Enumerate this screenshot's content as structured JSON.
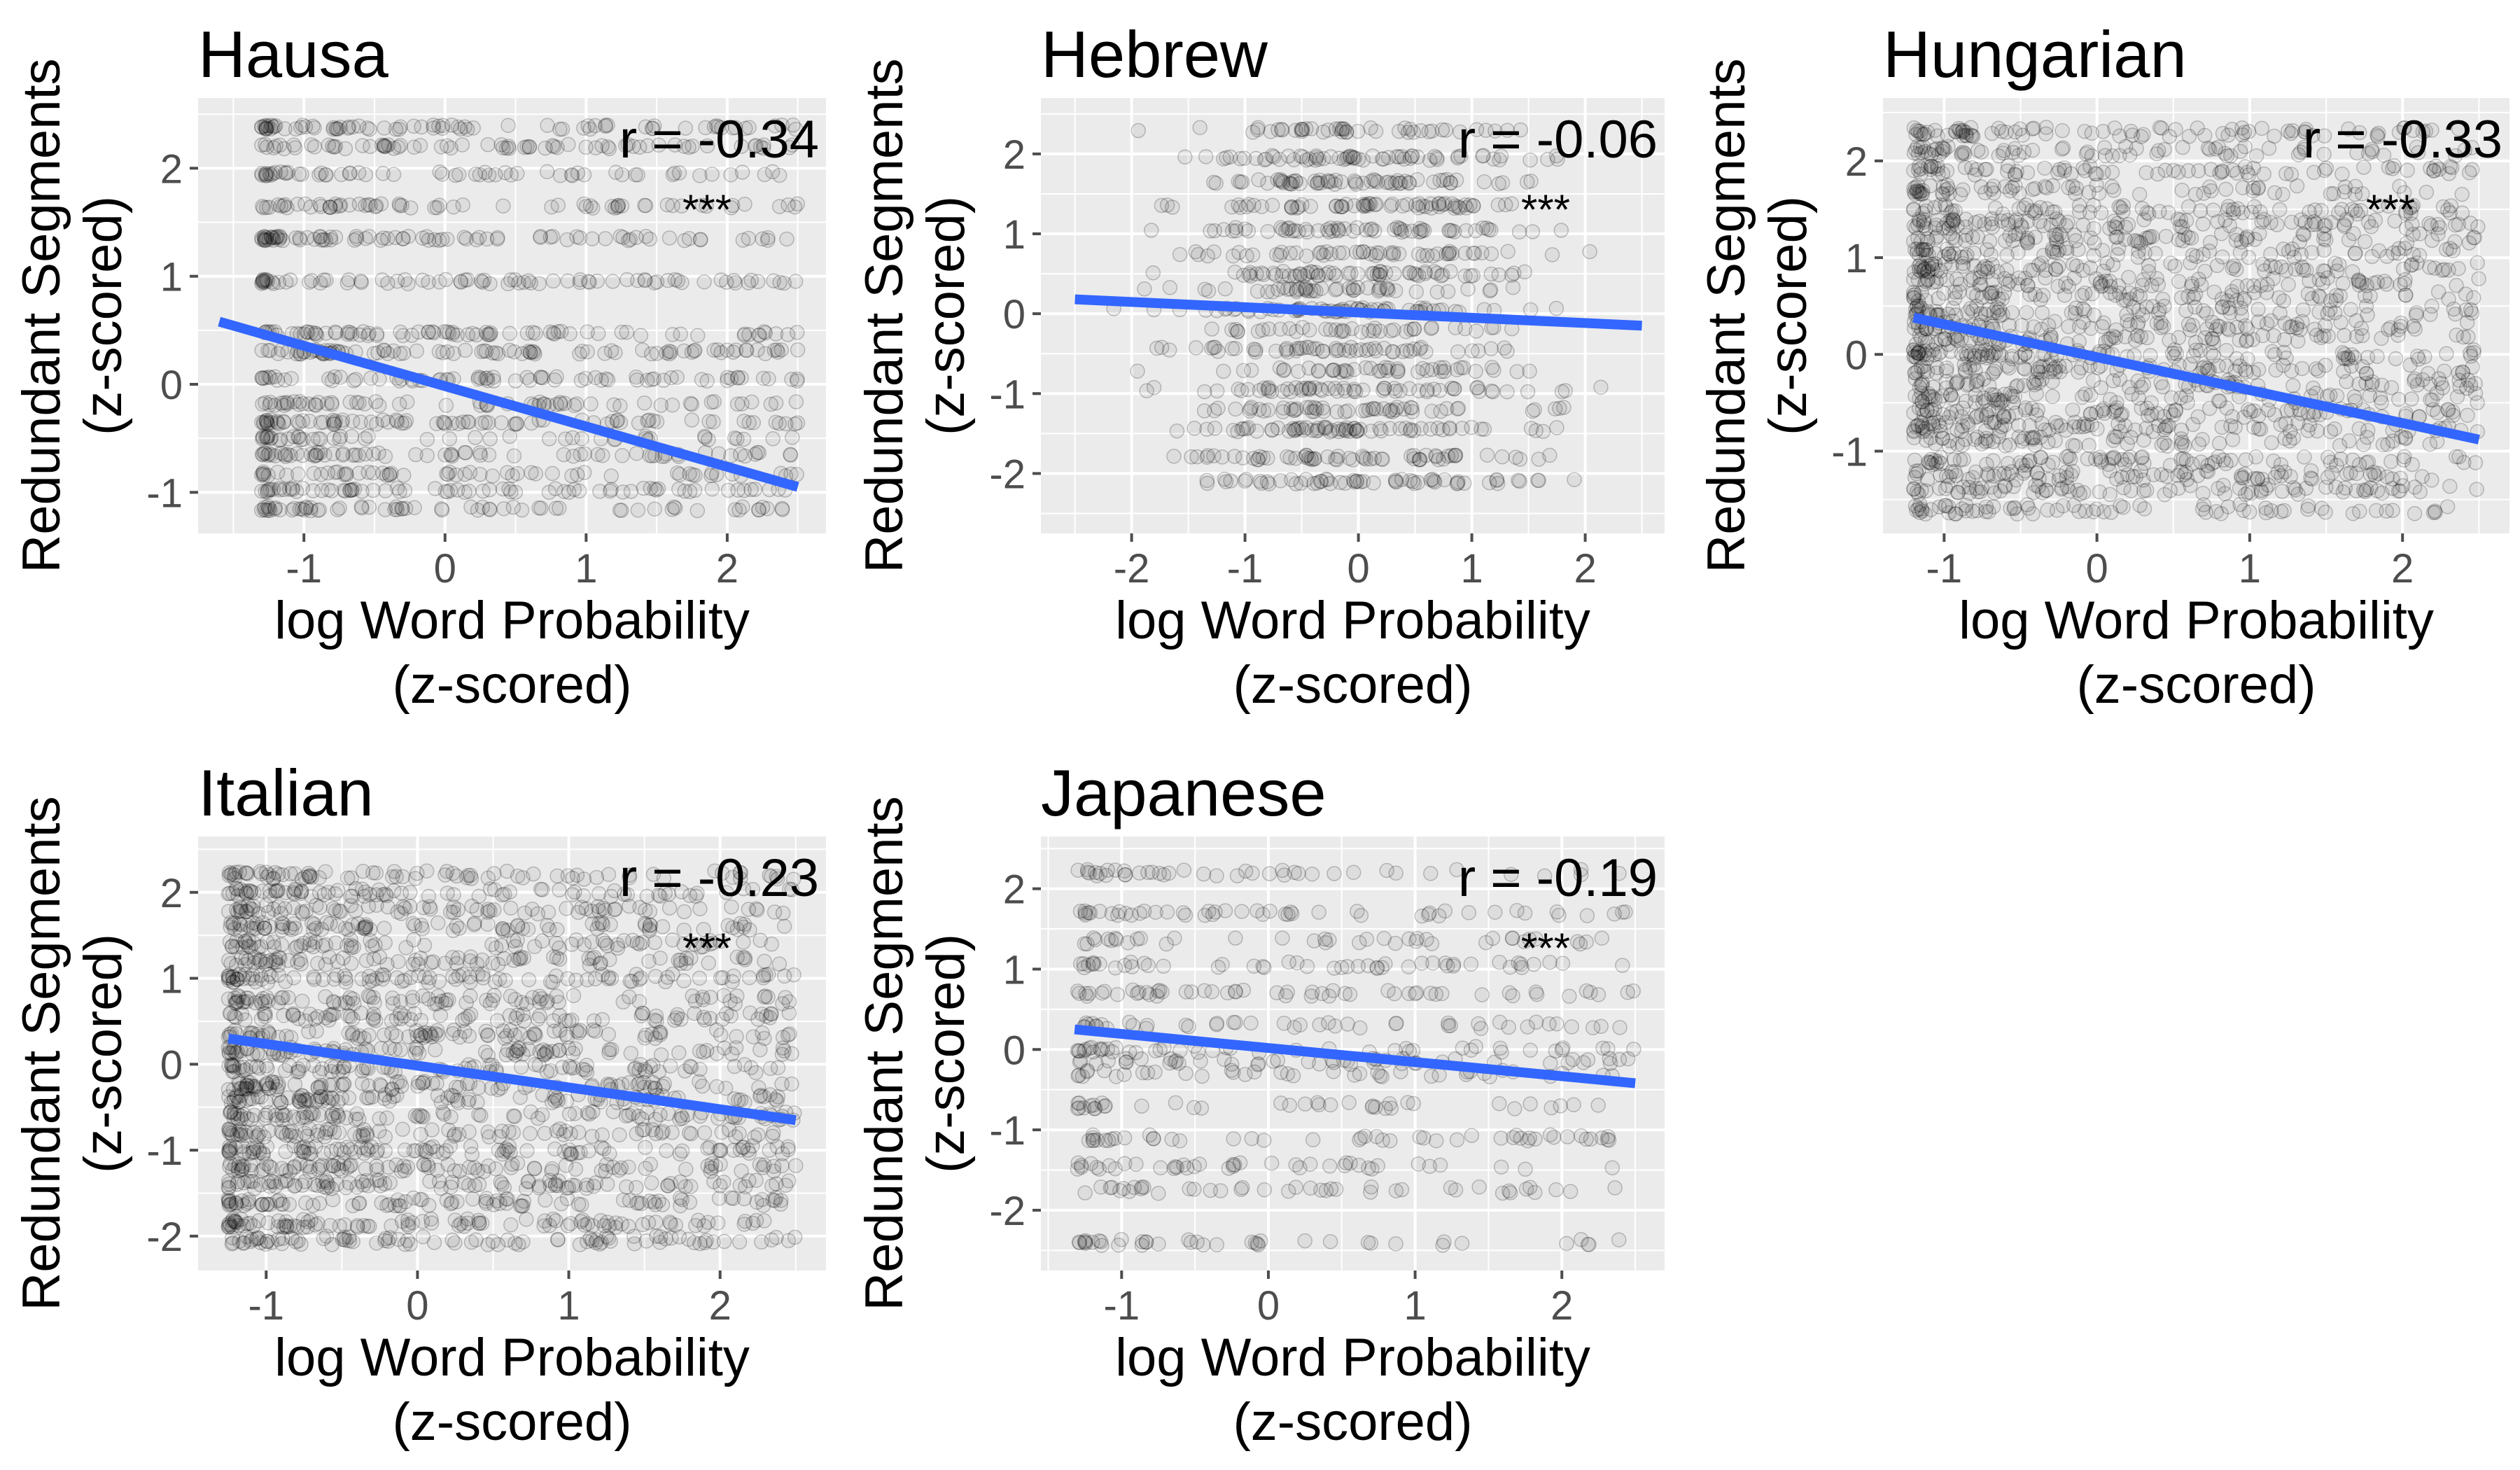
{
  "style": {
    "panel_background": "#ebebeb",
    "grid_color": "#ffffff",
    "point_color": "#000000",
    "fit_line_color": "#3366ff",
    "tick_color": "#4d4d4d"
  },
  "chart_data": [
    {
      "type": "scatter",
      "title": "Hausa",
      "xlabel": [
        "log Word Probability",
        "(z-scored)"
      ],
      "ylabel": [
        "Redundant Segments",
        "(z-scored)"
      ],
      "xlim": [
        -1.75,
        2.7
      ],
      "ylim": [
        -1.38,
        2.65
      ],
      "xticks": [
        -1,
        0,
        1,
        2
      ],
      "yticks": [
        -1,
        0,
        1,
        2
      ],
      "r_text": "r = -0.34",
      "significance": "***",
      "fit": {
        "x": [
          -1.6,
          2.5
        ],
        "y": [
          0.58,
          -0.95
        ]
      },
      "points": {
        "x_range": [
          -1.3,
          2.5
        ],
        "y_levels": [
          -1.15,
          -0.98,
          -0.83,
          -0.65,
          -0.5,
          -0.35,
          -0.18,
          0.05,
          0.3,
          0.47,
          0.95,
          1.35,
          1.65,
          1.95,
          2.2,
          2.38
        ],
        "count": 1150,
        "seed": 11,
        "scatter": 0.02,
        "density": "left"
      }
    },
    {
      "type": "scatter",
      "title": "Hebrew",
      "xlabel": [
        "log Word Probability",
        "(z-scored)"
      ],
      "ylabel": [
        "Redundant Segments",
        "(z-scored)"
      ],
      "xlim": [
        -2.8,
        2.7
      ],
      "ylim": [
        -2.75,
        2.7
      ],
      "xticks": [
        -2,
        -1,
        0,
        1,
        2
      ],
      "yticks": [
        -2,
        -1,
        0,
        1,
        2
      ],
      "r_text": "r = -0.06",
      "significance": "***",
      "fit": {
        "x": [
          -2.5,
          2.5
        ],
        "y": [
          0.18,
          -0.15
        ]
      },
      "points": {
        "x_range": [
          -2.4,
          2.4
        ],
        "y_levels": [
          -2.1,
          -1.8,
          -1.45,
          -1.2,
          -0.95,
          -0.7,
          -0.45,
          -0.2,
          0.05,
          0.3,
          0.5,
          0.75,
          1.05,
          1.35,
          1.65,
          1.95,
          2.3
        ],
        "count": 950,
        "seed": 23,
        "scatter": 0.03,
        "density": "center"
      }
    },
    {
      "type": "scatter",
      "title": "Hungarian",
      "xlabel": [
        "log Word Probability",
        "(z-scored)"
      ],
      "ylabel": [
        "Redundant Segments",
        "(z-scored)"
      ],
      "xlim": [
        -1.4,
        2.7
      ],
      "ylim": [
        -1.85,
        2.65
      ],
      "xticks": [
        -1,
        0,
        1,
        2
      ],
      "yticks": [
        -1,
        0,
        1,
        2
      ],
      "r_text": "r = -0.33",
      "significance": "***",
      "fit": {
        "x": [
          -1.2,
          2.5
        ],
        "y": [
          0.38,
          -0.88
        ]
      },
      "points": {
        "x_range": [
          -1.2,
          2.5
        ],
        "y_levels": [
          -1.6,
          -1.4,
          -1.25,
          -1.1,
          -0.9,
          -0.75,
          -0.6,
          -0.45,
          -0.3,
          -0.15,
          0.0,
          0.15,
          0.3,
          0.45,
          0.6,
          0.75,
          0.9,
          1.05,
          1.2,
          1.35,
          1.5,
          1.7,
          1.9,
          2.1,
          2.3
        ],
        "count": 2000,
        "seed": 37,
        "scatter": 0.05,
        "density": "left"
      }
    },
    {
      "type": "scatter",
      "title": "Italian",
      "xlabel": [
        "log Word Probability",
        "(z-scored)"
      ],
      "ylabel": [
        "Redundant Segments",
        "(z-scored)"
      ],
      "xlim": [
        -1.45,
        2.7
      ],
      "ylim": [
        -2.4,
        2.65
      ],
      "xticks": [
        -1,
        0,
        1,
        2
      ],
      "yticks": [
        -2,
        -1,
        0,
        1,
        2
      ],
      "r_text": "r = -0.23",
      "significance": "***",
      "fit": {
        "x": [
          -1.25,
          2.5
        ],
        "y": [
          0.3,
          -0.65
        ]
      },
      "points": {
        "x_range": [
          -1.25,
          2.5
        ],
        "y_levels": [
          -2.05,
          -1.85,
          -1.6,
          -1.4,
          -1.2,
          -1.0,
          -0.8,
          -0.6,
          -0.4,
          -0.25,
          -0.05,
          0.15,
          0.35,
          0.55,
          0.75,
          1.0,
          1.2,
          1.4,
          1.6,
          1.8,
          2.0,
          2.2
        ],
        "count": 2000,
        "seed": 53,
        "scatter": 0.05,
        "density": "left"
      }
    },
    {
      "type": "scatter",
      "title": "Japanese",
      "xlabel": [
        "log Word Probability",
        "(z-scored)"
      ],
      "ylabel": [
        "Redundant Segments",
        "(z-scored)"
      ],
      "xlim": [
        -1.55,
        2.7
      ],
      "ylim": [
        -2.75,
        2.65
      ],
      "xticks": [
        -1,
        0,
        1,
        2
      ],
      "yticks": [
        -2,
        -1,
        0,
        1,
        2
      ],
      "r_text": "r = -0.19",
      "significance": "***",
      "fit": {
        "x": [
          -1.32,
          2.5
        ],
        "y": [
          0.25,
          -0.42
        ]
      },
      "points": {
        "x_range": [
          -1.3,
          2.5
        ],
        "y_levels": [
          -2.4,
          -1.75,
          -1.45,
          -1.1,
          -0.7,
          -0.3,
          -0.15,
          0.0,
          0.3,
          0.7,
          1.05,
          1.35,
          1.7,
          2.2
        ],
        "count": 620,
        "seed": 71,
        "scatter": 0.04,
        "density": "left"
      }
    }
  ]
}
